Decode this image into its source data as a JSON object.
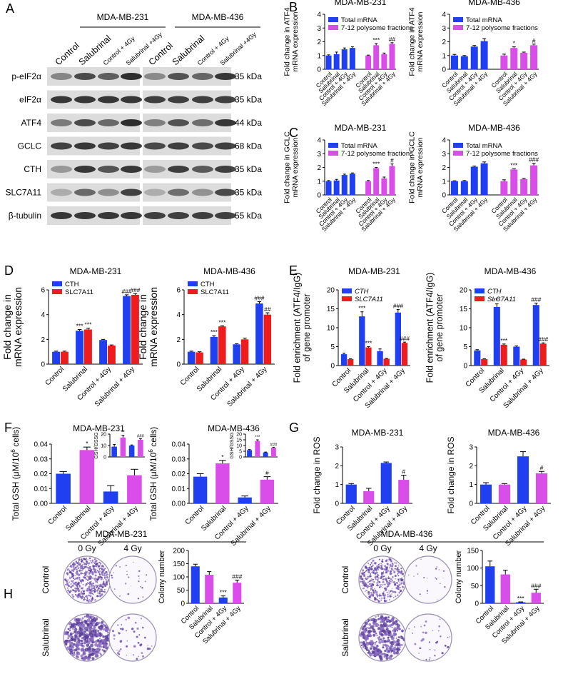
{
  "panel_labels": [
    "A",
    "B",
    "C",
    "D",
    "E",
    "F",
    "G",
    "H"
  ],
  "blot": {
    "cell_lines": [
      "MDA-MB-231",
      "MDA-MB-436"
    ],
    "lanes": [
      "Control",
      "Salubrinal",
      "Control + 4Gy",
      "Salubrinal +4Gy"
    ],
    "proteins": [
      {
        "name": "p-eIF2α",
        "size": "35 kDa"
      },
      {
        "name": "eIF2α",
        "size": "35 kDa"
      },
      {
        "name": "ATF4",
        "size": "44 kDa"
      },
      {
        "name": "GCLC",
        "size": "68 kDa"
      },
      {
        "name": "CTH",
        "size": "35 kDa"
      },
      {
        "name": "SLC7A11",
        "size": "35 kDa"
      },
      {
        "name": "β-tubulin",
        "size": "55 kDa"
      }
    ]
  },
  "colony": [
    {
      "title": "MDA-MB-231",
      "doses": [
        "0 Gy",
        "4 Gy"
      ],
      "treatments": [
        "Control",
        "Salubrinal"
      ]
    },
    {
      "title": "MDA-MB-436",
      "doses": [
        "0 Gy",
        "4 Gy"
      ],
      "treatments": [
        "Control",
        "Salubrinal"
      ]
    }
  ],
  "chart_data": [
    {
      "type": "bar",
      "title": "MDA-MB-231",
      "ylabel": [
        "Fold change in ATF4",
        "mRNA expression"
      ],
      "group_by": "series",
      "legend": "upper left",
      "categories": [
        "Control",
        "Salubrinal",
        "Control + 4Gy",
        "Salubrinal + 4Gy"
      ],
      "ylim": [
        0,
        4
      ],
      "yticks": [
        0,
        1,
        2,
        3,
        4
      ],
      "series": [
        {
          "name": "Total mRNA",
          "color": "#1f3ff0",
          "values": [
            1.0,
            1.1,
            1.45,
            1.55
          ],
          "errors": [
            0.05,
            0.15,
            0.1,
            0.08
          ],
          "significance": [
            null,
            null,
            null,
            null
          ]
        },
        {
          "name": "7-12 polysome fractions",
          "color": "#d94ee8",
          "values": [
            1.0,
            1.75,
            1.1,
            1.85
          ],
          "errors": [
            0.03,
            0.12,
            0.08,
            0.08
          ],
          "significance": [
            null,
            "***",
            null,
            "##"
          ]
        }
      ]
    },
    {
      "type": "bar",
      "title": "MDA-MB-436",
      "ylabel": [
        "Fold change in ATF4",
        "mRNA expression"
      ],
      "group_by": "series",
      "legend": "upper left",
      "categories": [
        "Control",
        "Salubrinal",
        "Control + 4Gy",
        "Salubrinal + 4Gy"
      ],
      "ylim": [
        0,
        4
      ],
      "yticks": [
        0,
        1,
        2,
        3,
        4
      ],
      "series": [
        {
          "name": "Total mRNA",
          "color": "#1f3ff0",
          "values": [
            1.0,
            0.95,
            1.65,
            2.05
          ],
          "errors": [
            0.08,
            0.05,
            0.08,
            0.18
          ],
          "significance": [
            null,
            null,
            null,
            null
          ]
        },
        {
          "name": "7-12 polysome fractions",
          "color": "#d94ee8",
          "values": [
            1.0,
            1.55,
            1.2,
            1.75
          ],
          "errors": [
            0.1,
            0.08,
            0.05,
            0.08
          ],
          "significance": [
            null,
            "*",
            null,
            "#"
          ]
        }
      ]
    },
    {
      "type": "bar",
      "title": "MDA-MB-231",
      "ylabel": [
        "Fold change in GCLC",
        "mRNA expression"
      ],
      "group_by": "series",
      "legend": "upper left",
      "categories": [
        "Control",
        "Salubrinal",
        "Control + 4Gy",
        "Salubrinal + 4Gy"
      ],
      "ylim": [
        0,
        4
      ],
      "yticks": [
        0,
        1,
        2,
        3,
        4
      ],
      "series": [
        {
          "name": "Total mRNA",
          "color": "#1f3ff0",
          "values": [
            1.0,
            1.05,
            1.45,
            1.55
          ],
          "errors": [
            0.05,
            0.08,
            0.06,
            0.05
          ],
          "significance": [
            null,
            null,
            null,
            null
          ]
        },
        {
          "name": "7-12 polysome fractions",
          "color": "#d94ee8",
          "values": [
            1.0,
            1.95,
            1.2,
            2.1
          ],
          "errors": [
            0.05,
            0.05,
            0.1,
            0.15
          ],
          "significance": [
            null,
            "***",
            null,
            "#"
          ]
        }
      ]
    },
    {
      "type": "bar",
      "title": "MDA-MB-436",
      "ylabel": [
        "Fold change in GCLC",
        "mRNA expression"
      ],
      "group_by": "series",
      "legend": "upper left",
      "categories": [
        "Control",
        "Salubrinal",
        "Control + 4Gy",
        "Salubrinal + 4Gy"
      ],
      "ylim": [
        0,
        4
      ],
      "yticks": [
        0,
        1,
        2,
        3,
        4
      ],
      "series": [
        {
          "name": "Total mRNA",
          "color": "#1f3ff0",
          "values": [
            1.0,
            1.0,
            2.05,
            2.3
          ],
          "errors": [
            0.03,
            0.05,
            0.05,
            0.1
          ],
          "significance": [
            null,
            null,
            null,
            null
          ]
        },
        {
          "name": "7-12 polysome fractions",
          "color": "#d94ee8",
          "values": [
            1.0,
            1.85,
            1.15,
            2.15
          ],
          "errors": [
            0.1,
            0.05,
            0.05,
            0.15
          ],
          "significance": [
            null,
            "***",
            null,
            "###"
          ]
        }
      ]
    },
    {
      "type": "bar",
      "title": "MDA-MB-231",
      "ylabel": [
        "Fold change in",
        "mRNA expression"
      ],
      "group_by": "category",
      "legend": "upper left",
      "categories": [
        "Control",
        "Salubrinal",
        "Control + 4Gy",
        "Salubrinal + 4Gy"
      ],
      "ylim": [
        0,
        6
      ],
      "yticks": [
        0,
        2,
        4,
        6
      ],
      "series": [
        {
          "name": "CTH",
          "color": "#1f3ff0",
          "values": [
            1.0,
            2.7,
            1.95,
            5.5
          ],
          "errors": [
            0.05,
            0.1,
            0.05,
            0.1
          ],
          "significance": [
            null,
            "***",
            null,
            "###"
          ]
        },
        {
          "name": "SLC7A11",
          "color": "#ee1c1c",
          "values": [
            1.0,
            2.8,
            1.5,
            5.6
          ],
          "errors": [
            0.05,
            0.1,
            0.05,
            0.1
          ],
          "significance": [
            null,
            "***",
            null,
            "###"
          ]
        }
      ]
    },
    {
      "type": "bar",
      "title": "MDA-MB-436",
      "ylabel": [
        "Fold change in",
        "mRNA expression"
      ],
      "group_by": "category",
      "legend": "upper left",
      "categories": [
        "Control",
        "Salubrinal",
        "Control + 4Gy",
        "Salubrinal + 4Gy"
      ],
      "ylim": [
        0,
        6
      ],
      "yticks": [
        0,
        2,
        4,
        6
      ],
      "series": [
        {
          "name": "CTH",
          "color": "#1f3ff0",
          "values": [
            1.0,
            2.2,
            1.6,
            4.9
          ],
          "errors": [
            0.05,
            0.1,
            0.05,
            0.15
          ],
          "significance": [
            null,
            "***",
            null,
            "###"
          ]
        },
        {
          "name": "SLC7A11",
          "color": "#ee1c1c",
          "values": [
            0.95,
            3.05,
            2.0,
            4.0
          ],
          "errors": [
            0.05,
            0.05,
            0.1,
            0.15
          ],
          "significance": [
            null,
            "***",
            null,
            "##"
          ]
        }
      ]
    },
    {
      "type": "bar",
      "title": "MDA-MB-231",
      "ylabel": [
        "Fold enrichment (ATF4/IgG)",
        "of gene promoter"
      ],
      "group_by": "category",
      "legend": "upper left",
      "legend_style": "italic",
      "categories": [
        "Control",
        "Salubrinal",
        "Control + 4Gy",
        "Salubrinal + 4Gy"
      ],
      "ylim": [
        0,
        20
      ],
      "yticks": [
        0,
        5,
        10,
        15,
        20
      ],
      "series": [
        {
          "name": "CTH",
          "color": "#1f3ff0",
          "values": [
            3.0,
            13.0,
            3.8,
            14.0
          ],
          "errors": [
            0.3,
            1.2,
            0.6,
            0.8
          ],
          "significance": [
            null,
            "***",
            null,
            "###"
          ]
        },
        {
          "name": "SLC7A11",
          "color": "#ee1c1c",
          "values": [
            1.7,
            4.8,
            1.8,
            6.0
          ],
          "errors": [
            0.1,
            0.2,
            0.1,
            0.2
          ],
          "significance": [
            null,
            "***",
            null,
            "###"
          ]
        }
      ]
    },
    {
      "type": "bar",
      "title": "MDA-MB-436",
      "ylabel": [
        "Fold enrichment (ATF4/IgG)",
        "of gene promoter"
      ],
      "group_by": "category",
      "legend": "upper left",
      "legend_style": "italic",
      "categories": [
        "Control",
        "Salubrinal",
        "Control + 4Gy",
        "Salubrinal + 4Gy"
      ],
      "ylim": [
        0,
        20
      ],
      "yticks": [
        0,
        5,
        10,
        15,
        20
      ],
      "series": [
        {
          "name": "CTH",
          "color": "#1f3ff0",
          "values": [
            4.0,
            15.5,
            5.0,
            16.0
          ],
          "errors": [
            0.2,
            0.8,
            0.2,
            0.5
          ],
          "significance": [
            null,
            "***",
            null,
            "###"
          ]
        },
        {
          "name": "SLC7A11",
          "color": "#ee1c1c",
          "values": [
            1.7,
            5.5,
            1.6,
            5.8
          ],
          "errors": [
            0.1,
            0.2,
            0.1,
            0.2
          ],
          "significance": [
            null,
            "***",
            null,
            "###"
          ]
        }
      ]
    },
    {
      "type": "bar",
      "title": "MDA-MB-231",
      "ylabel": "Total GSH (μM/10",
      "ylabel_superscript": "6",
      "ylabel_suffix": " cells)",
      "categories": [
        "Control",
        "Salubrinal",
        "Control + 4Gy",
        "Salubrinal + 4Gy"
      ],
      "ylim": [
        0,
        0.04
      ],
      "yticks": [
        {
          "value": 0,
          "label": "0.00"
        },
        {
          "value": 0.01,
          "label": "0.01"
        },
        {
          "value": 0.02,
          "label": "0.02"
        },
        {
          "value": 0.03,
          "label": "0.03"
        },
        {
          "value": 0.04,
          "label": "0.04"
        }
      ],
      "values": [
        0.02,
        0.036,
        0.008,
        0.019
      ],
      "errors": [
        0.0015,
        0.002,
        0.004,
        0.004
      ],
      "colors": [
        "#1f3ff0",
        "#d94ee8",
        "#1f3ff0",
        "#d94ee8"
      ],
      "significance": [
        null,
        "*",
        null,
        null
      ],
      "inset": {
        "ylabel": "GSH/GSSG",
        "ylim": [
          0,
          20
        ],
        "yticks": [
          0,
          10,
          20
        ],
        "values": [
          9,
          17,
          10,
          15
        ],
        "errors": [
          2,
          2,
          0.5,
          1
        ],
        "colors": [
          "#1f3ff0",
          "#d94ee8",
          "#1f3ff0",
          "#d94ee8"
        ],
        "significance": [
          null,
          "**",
          null,
          "###"
        ]
      }
    },
    {
      "type": "bar",
      "title": "MDA-MB-436",
      "ylabel": "Total GSH (μM/10",
      "ylabel_superscript": "6",
      "ylabel_suffix": " cells)",
      "categories": [
        "Control",
        "Salubrinal",
        "Control + 4Gy",
        "Salubrinal + 4Gy"
      ],
      "ylim": [
        0,
        0.04
      ],
      "yticks": [
        {
          "value": 0,
          "label": "0.00"
        },
        {
          "value": 0.01,
          "label": "0.01"
        },
        {
          "value": 0.02,
          "label": "0.02"
        },
        {
          "value": 0.03,
          "label": "0.03"
        },
        {
          "value": 0.04,
          "label": "0.04"
        }
      ],
      "values": [
        0.018,
        0.027,
        0.004,
        0.016
      ],
      "errors": [
        0.002,
        0.002,
        0.001,
        0.002
      ],
      "colors": [
        "#1f3ff0",
        "#d94ee8",
        "#1f3ff0",
        "#d94ee8"
      ],
      "significance": [
        null,
        "*",
        null,
        "#"
      ],
      "inset": {
        "ylabel": "GSH/GSSG",
        "ylim": [
          0,
          20
        ],
        "yticks": [
          0,
          5,
          10,
          15,
          20
        ],
        "values": [
          6,
          14,
          4,
          8
        ],
        "errors": [
          0.5,
          1,
          0.3,
          0.5
        ],
        "colors": [
          "#1f3ff0",
          "#d94ee8",
          "#1f3ff0",
          "#d94ee8"
        ],
        "significance": [
          null,
          "***",
          null,
          "###"
        ]
      }
    },
    {
      "type": "bar",
      "title": "MDA-MB-231",
      "ylabel": [
        "Fold change in ROS"
      ],
      "categories": [
        "Control",
        "Salubrinal",
        "Control + 4Gy",
        "Salubrinal + 4Gy"
      ],
      "ylim": [
        0,
        3
      ],
      "yticks": [
        0,
        1,
        2,
        3
      ],
      "values": [
        1.0,
        0.65,
        2.15,
        1.25
      ],
      "errors": [
        0.05,
        0.15,
        0.05,
        0.25
      ],
      "colors": [
        "#1f3ff0",
        "#d94ee8",
        "#1f3ff0",
        "#d94ee8"
      ],
      "significance": [
        null,
        null,
        null,
        "#"
      ]
    },
    {
      "type": "bar",
      "title": "MDA-MB-436",
      "ylabel": [
        "Fold change in ROS"
      ],
      "categories": [
        "Control",
        "Salubrinal",
        "Control + 4Gy",
        "Salubrinal + 4Gy"
      ],
      "ylim": [
        0,
        3
      ],
      "yticks": [
        0,
        1,
        2,
        3
      ],
      "values": [
        1.0,
        1.0,
        2.5,
        1.6
      ],
      "errors": [
        0.1,
        0.05,
        0.25,
        0.1
      ],
      "colors": [
        "#1f3ff0",
        "#d94ee8",
        "#1f3ff0",
        "#d94ee8"
      ],
      "significance": [
        null,
        null,
        null,
        "#"
      ]
    },
    {
      "type": "bar",
      "ylabel": [
        "Colony number"
      ],
      "categories": [
        "Control",
        "Salubrinal",
        "Control + 4Gy",
        "Salubrinal + 4Gy"
      ],
      "ylim": [
        0,
        200
      ],
      "yticks": [
        0,
        50,
        100,
        150,
        200
      ],
      "values": [
        140,
        108,
        22,
        78
      ],
      "errors": [
        8,
        12,
        6,
        10
      ],
      "colors": [
        "#1f3ff0",
        "#d94ee8",
        "#1f3ff0",
        "#d94ee8"
      ],
      "significance": [
        null,
        null,
        "***",
        "###"
      ]
    },
    {
      "type": "bar",
      "ylabel": [
        "Colony number"
      ],
      "categories": [
        "Control",
        "Salubrinal",
        "Control + 4Gy",
        "Salubrinal + 4Gy"
      ],
      "ylim": [
        0,
        150
      ],
      "yticks": [
        0,
        50,
        100,
        150
      ],
      "values": [
        105,
        82,
        3,
        30
      ],
      "errors": [
        15,
        12,
        1,
        10
      ],
      "colors": [
        "#1f3ff0",
        "#d94ee8",
        "#1f3ff0",
        "#d94ee8"
      ],
      "significance": [
        null,
        null,
        "***",
        "###"
      ]
    }
  ]
}
